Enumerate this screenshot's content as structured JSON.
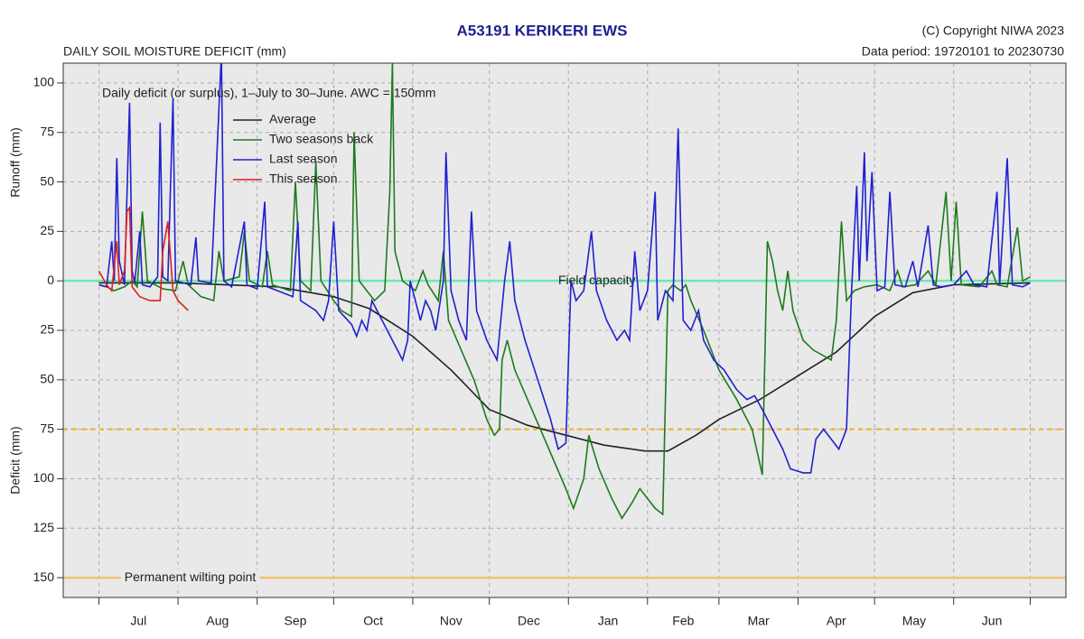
{
  "chart_data": {
    "type": "line",
    "title": "A53191  KERIKERI EWS",
    "subtitle": "DAILY SOIL MOISTURE DEFICIT (mm)",
    "copyright": "(C) Copyright NIWA  2023",
    "data_period": "Data period:  19720101  to  20230730",
    "annotation": "Daily deficit (or surplus), 1–July to 30–June.  AWC = 150mm",
    "y_label_top": "Runoff (mm)",
    "y_label_bottom": "Deficit (mm)",
    "categories": [
      "Jul",
      "Aug",
      "Sep",
      "Oct",
      "Nov",
      "Dec",
      "Jan",
      "Feb",
      "Mar",
      "Apr",
      "May",
      "Jun"
    ],
    "xticks": [
      0,
      31,
      62,
      92,
      123,
      153,
      184,
      215,
      243,
      274,
      304,
      335,
      365
    ],
    "xlim": [
      -14,
      379
    ],
    "ylim": [
      -160,
      110
    ],
    "yticks": [
      100,
      75,
      50,
      25,
      0,
      {
        "value": -25,
        "label": "25"
      },
      {
        "value": -50,
        "label": "50"
      },
      {
        "value": -75,
        "label": "75"
      },
      {
        "value": -100,
        "label": "100"
      },
      {
        "value": -125,
        "label": "125"
      },
      {
        "value": -150,
        "label": "150"
      }
    ],
    "grid": true,
    "legend": "upper left",
    "reference_lines": [
      {
        "label": "Field capacity",
        "value": 0,
        "color": "#6ee8b4",
        "style": "solid"
      },
      {
        "value": -75,
        "color": "#f0b840",
        "style": "dashed"
      },
      {
        "label": "Permanent wilting point",
        "value": -150,
        "color": "#f0c070",
        "style": "solid"
      }
    ],
    "series": [
      {
        "name": "Average",
        "color": "#222222",
        "x": [
          0,
          31,
          50,
          70,
          92,
          106,
          123,
          138,
          153,
          168,
          183,
          198,
          214,
          223,
          234,
          243,
          259,
          274,
          289,
          304,
          319,
          335,
          365
        ],
        "values": [
          -1,
          -1,
          -2,
          -3,
          -8,
          -14,
          -28,
          -45,
          -65,
          -73,
          -78,
          -83,
          -86,
          -86,
          -78,
          -70,
          -60,
          -48,
          -36,
          -18,
          -6,
          -2,
          -1
        ]
      },
      {
        "name": "Two seasons back",
        "color": "#1e7a1e",
        "x": [
          0,
          3,
          6,
          10,
          13,
          15,
          17,
          19,
          22,
          25,
          30,
          33,
          35,
          40,
          45,
          47,
          49,
          55,
          57,
          59,
          64,
          66,
          68,
          75,
          77,
          79,
          83,
          85,
          87,
          92,
          95,
          99,
          100,
          102,
          108,
          112,
          114,
          115,
          116,
          119,
          124,
          127,
          129,
          133,
          135,
          137,
          142,
          147,
          152,
          155,
          157,
          158,
          160,
          163,
          168,
          173,
          178,
          183,
          186,
          190,
          192,
          196,
          201,
          205,
          209,
          212,
          215,
          218,
          221,
          223,
          225,
          228,
          230,
          232,
          237,
          243,
          250,
          256,
          260,
          262,
          264,
          266,
          268,
          270,
          272,
          276,
          280,
          287,
          289,
          291,
          293,
          296,
          300,
          305,
          310,
          313,
          315,
          320,
          325,
          328,
          332,
          334,
          336,
          338,
          345,
          350,
          352,
          356,
          360,
          362,
          365
        ],
        "values": [
          -2,
          -3,
          -5,
          -3,
          0,
          -3,
          35,
          0,
          -2,
          -4,
          -5,
          10,
          -2,
          -8,
          -10,
          15,
          0,
          2,
          25,
          0,
          -3,
          15,
          -2,
          -5,
          50,
          0,
          -5,
          60,
          0,
          -10,
          -15,
          -18,
          75,
          0,
          -10,
          -5,
          45,
          110,
          15,
          0,
          -5,
          5,
          -2,
          -10,
          15,
          -20,
          -35,
          -50,
          -70,
          -78,
          -75,
          -40,
          -30,
          -45,
          -60,
          -75,
          -90,
          -105,
          -115,
          -100,
          -78,
          -95,
          -110,
          -120,
          -112,
          -105,
          -110,
          -115,
          -118,
          -5,
          -2,
          -5,
          -2,
          -10,
          -25,
          -45,
          -60,
          -75,
          -98,
          20,
          10,
          -5,
          -15,
          5,
          -15,
          -30,
          -35,
          -40,
          -20,
          30,
          -10,
          -5,
          -3,
          -2,
          -5,
          5,
          -3,
          -2,
          5,
          -2,
          45,
          0,
          40,
          -2,
          -3,
          5,
          -2,
          -3,
          27,
          0,
          2
        ]
      },
      {
        "name": "Last season",
        "color": "#2020d0",
        "x": [
          0,
          3,
          5,
          6,
          7,
          8,
          10,
          12,
          13,
          14,
          16,
          17,
          20,
          23,
          24,
          25,
          27,
          29,
          30,
          33,
          36,
          38,
          39,
          44,
          48,
          49,
          52,
          57,
          58,
          62,
          65,
          66,
          70,
          76,
          78,
          79,
          85,
          88,
          90,
          92,
          94,
          99,
          101,
          103,
          105,
          107,
          109,
          113,
          117,
          119,
          121,
          122,
          124,
          126,
          128,
          130,
          132,
          135,
          136,
          138,
          141,
          144,
          146,
          148,
          152,
          156,
          159,
          161,
          163,
          167,
          172,
          177,
          180,
          183,
          185,
          187,
          190,
          193,
          195,
          199,
          203,
          206,
          208,
          210,
          212,
          215,
          218,
          219,
          222,
          225,
          227,
          229,
          232,
          235,
          237,
          241,
          245,
          250,
          254,
          257,
          260,
          264,
          268,
          271,
          276,
          279,
          281,
          284,
          287,
          290,
          293,
          295,
          297,
          298,
          300,
          301,
          303,
          305,
          308,
          310,
          312,
          316,
          319,
          321,
          325,
          327,
          330,
          335,
          340,
          343,
          348,
          352,
          353,
          356,
          358,
          362,
          365
        ],
        "values": [
          -2,
          -3,
          20,
          0,
          62,
          10,
          -2,
          90,
          5,
          -1,
          25,
          -2,
          -3,
          2,
          80,
          2,
          0,
          92,
          0,
          -1,
          -2,
          22,
          0,
          -1,
          115,
          0,
          -3,
          30,
          -2,
          -4,
          40,
          -3,
          -5,
          -8,
          30,
          -10,
          -15,
          -20,
          -10,
          30,
          -15,
          -22,
          -28,
          -20,
          -25,
          -10,
          -15,
          -25,
          -35,
          -40,
          -30,
          0,
          -10,
          -20,
          -10,
          -15,
          -25,
          0,
          65,
          -5,
          -20,
          -30,
          35,
          -15,
          -30,
          -40,
          0,
          20,
          -10,
          -30,
          -50,
          -70,
          -85,
          -82,
          0,
          -10,
          -5,
          25,
          -5,
          -20,
          -30,
          -25,
          -30,
          15,
          -15,
          -5,
          45,
          -20,
          -5,
          -10,
          77,
          -20,
          -25,
          -15,
          -30,
          -40,
          -45,
          -55,
          -60,
          -58,
          -65,
          -75,
          -85,
          -95,
          -97,
          -97,
          -80,
          -75,
          -80,
          -85,
          -75,
          -5,
          48,
          0,
          65,
          10,
          55,
          -5,
          -3,
          45,
          -2,
          -3,
          10,
          -3,
          28,
          -2,
          -3,
          -2,
          5,
          -2,
          -3,
          45,
          -2,
          62,
          -2,
          -3,
          -1
        ]
      },
      {
        "name": "This season",
        "color": "#e02020",
        "x": [
          0,
          3,
          5,
          7,
          8,
          10,
          11,
          12,
          13,
          16,
          20,
          24,
          25,
          27,
          29,
          31,
          35
        ],
        "values": [
          5,
          -2,
          -5,
          20,
          -2,
          5,
          35,
          37,
          -3,
          -8,
          -10,
          -10,
          15,
          30,
          -5,
          -10,
          -15
        ]
      }
    ]
  }
}
